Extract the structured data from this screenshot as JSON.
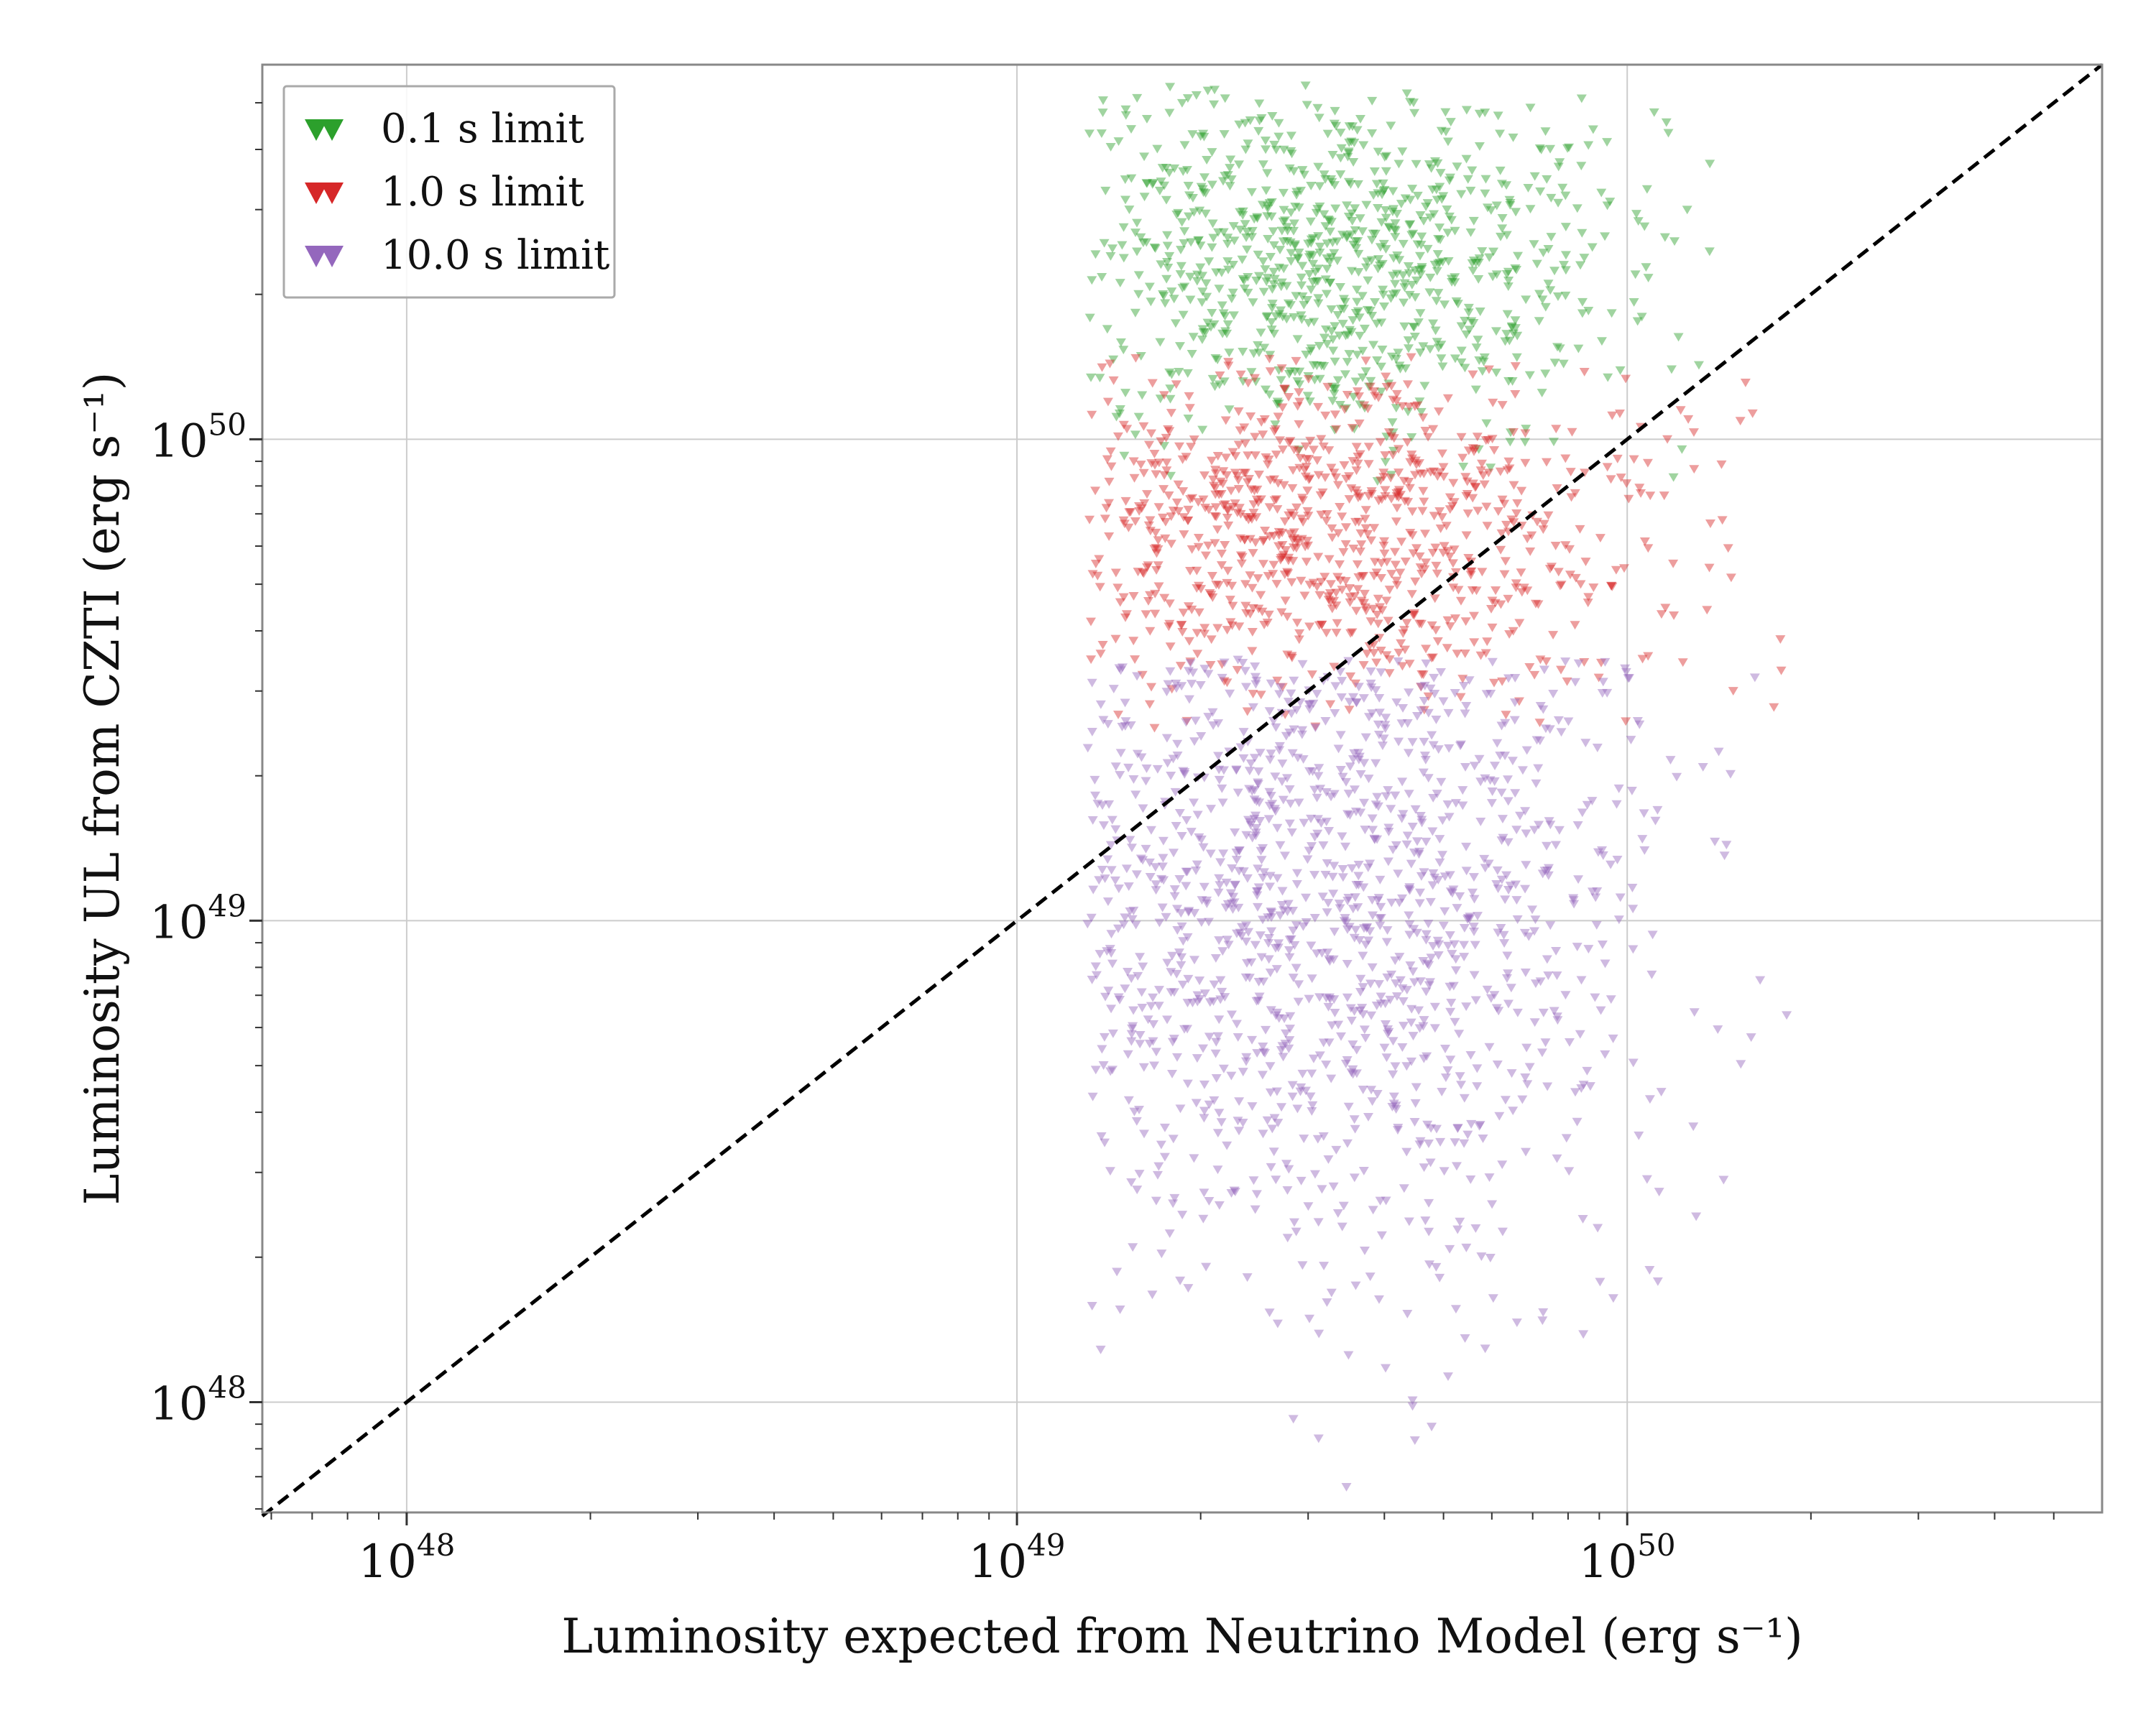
{
  "chart_data": {
    "type": "scatter",
    "xlabel": "Luminosity expected from Neutrino Model (erg s⁻¹)",
    "ylabel": "Luminosity UL from CZTI (erg s⁻¹)",
    "xscale": "log",
    "yscale": "log",
    "xlim": [
      5.8e+47,
      6e+50
    ],
    "ylim": [
      5.9e+47,
      6e+50
    ],
    "x_ticks": [
      {
        "value": 1e+48,
        "base": "10",
        "exp": "48"
      },
      {
        "value": 1e+49,
        "base": "10",
        "exp": "49"
      },
      {
        "value": 1e+50,
        "base": "10",
        "exp": "50"
      }
    ],
    "y_ticks": [
      {
        "value": 1e+48,
        "base": "10",
        "exp": "48"
      },
      {
        "value": 1e+49,
        "base": "10",
        "exp": "49"
      },
      {
        "value": 1e+50,
        "base": "10",
        "exp": "50"
      }
    ],
    "grid": true,
    "legend_position": "top-left",
    "marker": "downward-triangle",
    "reference_line": {
      "style": "dashed",
      "color": "#000000",
      "relation": "y = x",
      "x": [
        5.8e+47,
        6e+50
      ],
      "y": [
        5.8e+47,
        6e+50
      ]
    },
    "series": [
      {
        "name": "0.1 s limit",
        "color": "#2ca02c",
        "x_range": [
          1.3e+49,
          1.4e+50
        ],
        "y_range": [
          8e+49,
          5.5e+50
        ],
        "center": {
          "x": 3.2e+49,
          "y": 2.4e+50
        },
        "sampled_points": 900
      },
      {
        "name": "1.0 s limit",
        "color": "#d62728",
        "x_range": [
          1.3e+49,
          2e+50
        ],
        "y_range": [
          2.5e+49,
          1.5e+50
        ],
        "center": {
          "x": 3.2e+49,
          "y": 6.5e+49
        },
        "sampled_points": 900
      },
      {
        "name": "10.0 s limit",
        "color": "#9467bd",
        "x_range": [
          1.3e+49,
          2e+50
        ],
        "y_range": [
          6.5e+47,
          3.5e+49
        ],
        "center": {
          "x": 3.2e+49,
          "y": 1.2e+49
        },
        "sampled_points": 1300
      }
    ]
  }
}
